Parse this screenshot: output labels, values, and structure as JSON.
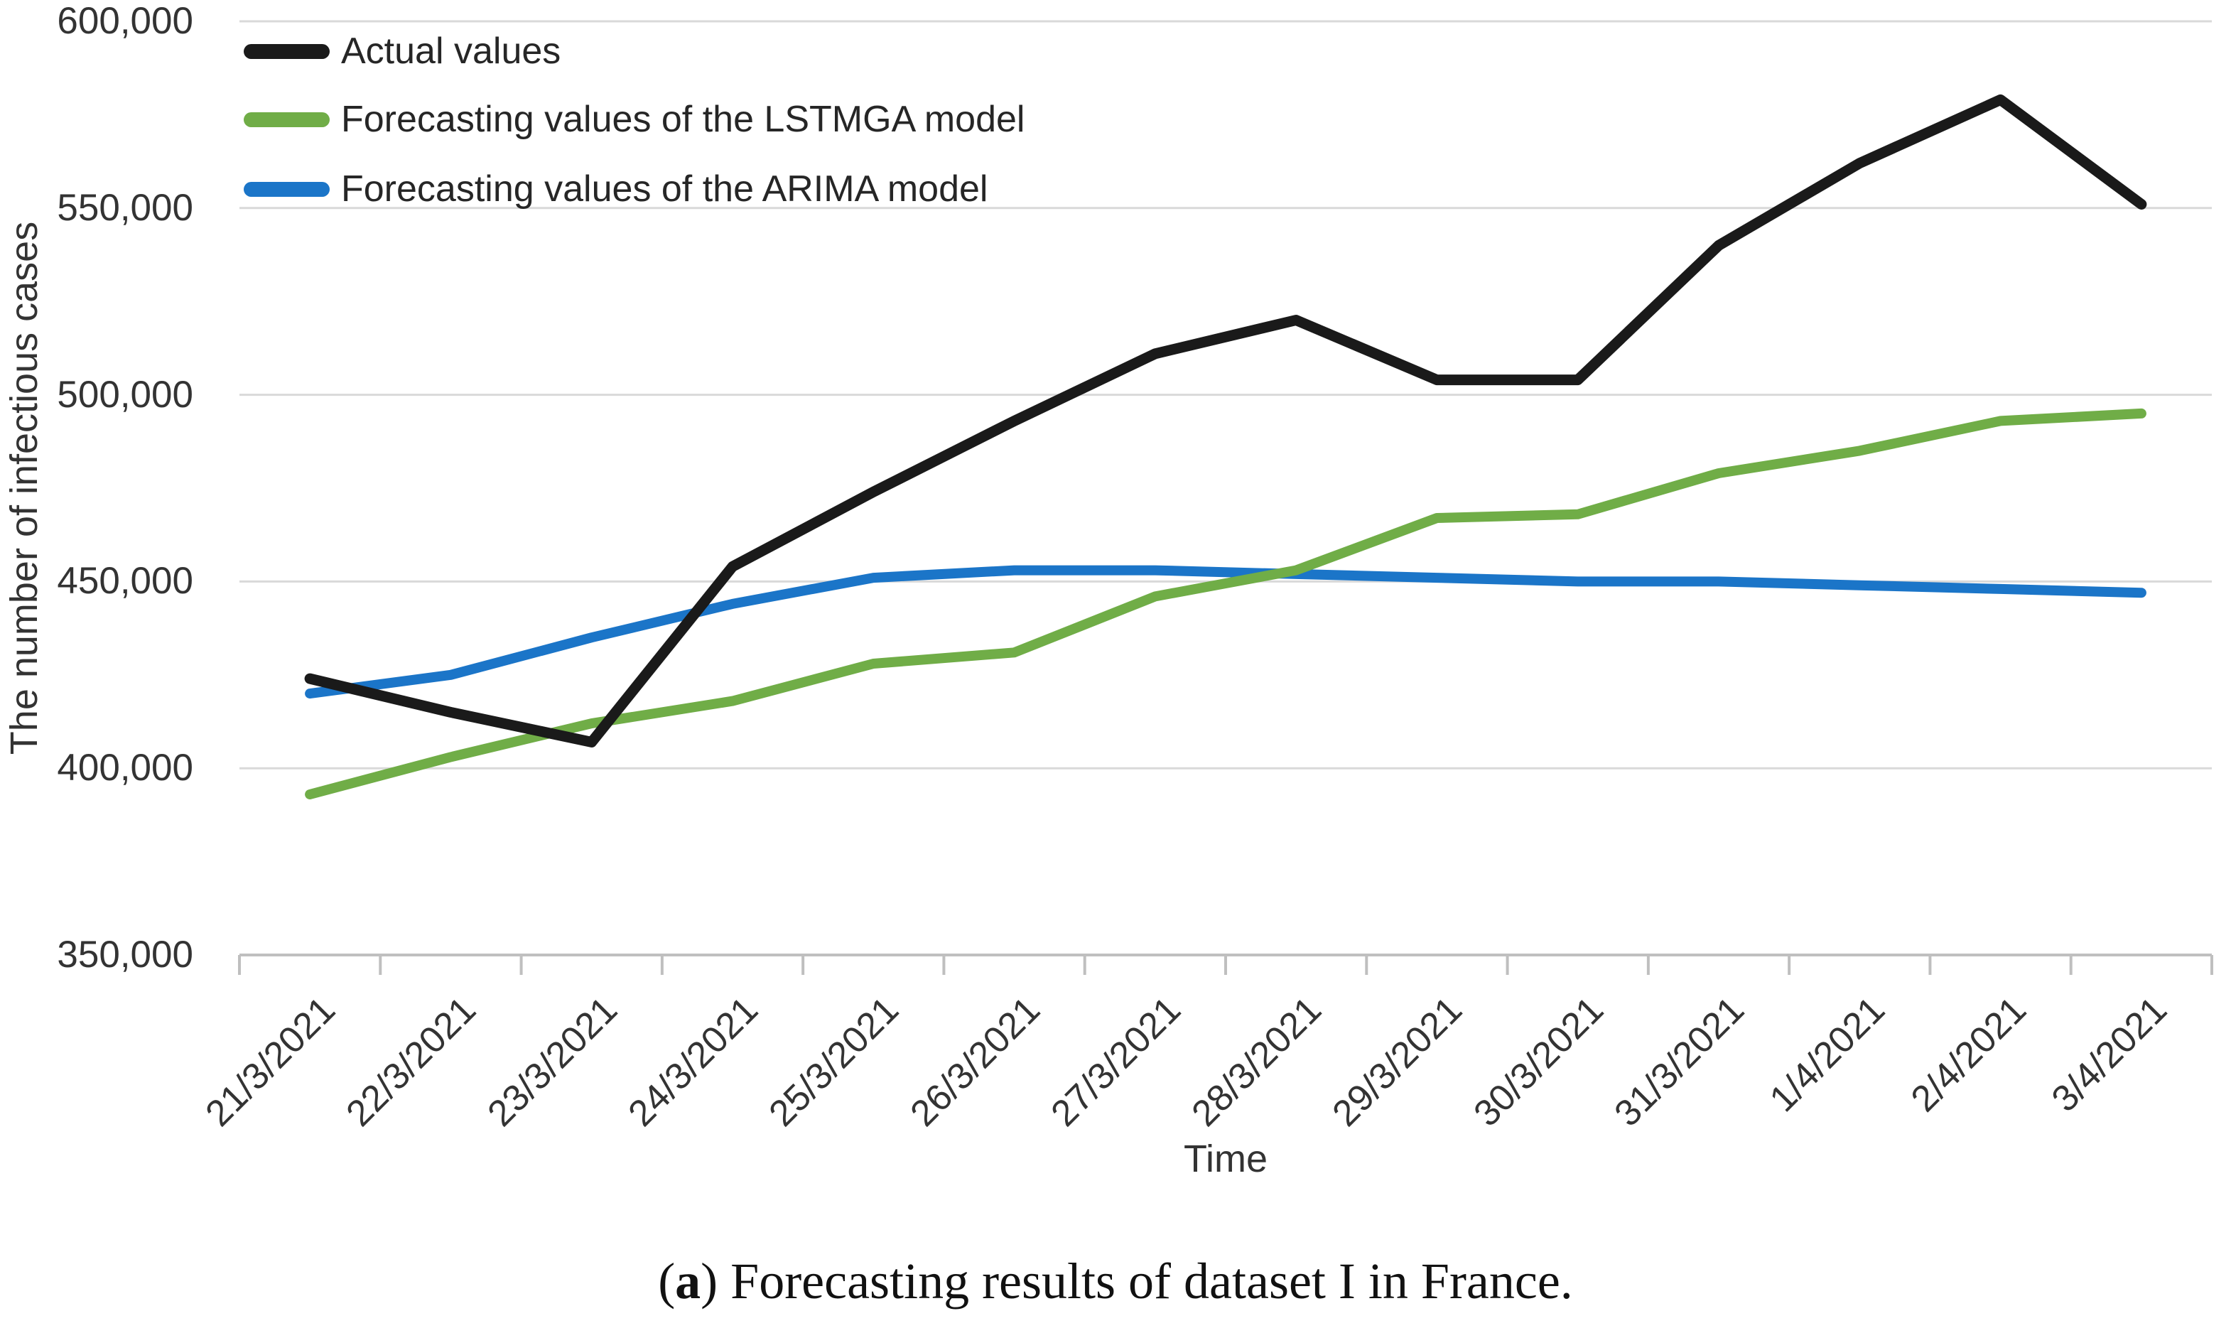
{
  "figure": {
    "caption": {
      "open": "(",
      "letter": "a",
      "rest": ") Forecasting results of dataset I in France."
    }
  },
  "chart_data": {
    "type": "line",
    "title": "",
    "xlabel": "Time",
    "ylabel": "The number of infectious cases",
    "ylim": [
      350000,
      600000
    ],
    "y_tick_step": 50000,
    "y_tick_labels": [
      "350,000",
      "400,000",
      "450,000",
      "500,000",
      "550,000",
      "600,000"
    ],
    "grid": "horizontal",
    "legend_position": "top-left",
    "colors": {
      "actual": "#1a1a1a",
      "lstmga": "#70AD47",
      "arima": "#1B75C8",
      "gridline": "#D9D9D9",
      "axis": "#BFBFBF",
      "text": "#333333"
    },
    "categories": [
      "21/3/2021",
      "22/3/2021",
      "23/3/2021",
      "24/3/2021",
      "25/3/2021",
      "26/3/2021",
      "27/3/2021",
      "28/3/2021",
      "29/3/2021",
      "30/3/2021",
      "31/3/2021",
      "1/4/2021",
      "2/4/2021",
      "3/4/2021"
    ],
    "series": [
      {
        "name": "Actual values",
        "color": "#1a1a1a",
        "values": [
          424000,
          415000,
          407000,
          454000,
          474000,
          493000,
          511000,
          520000,
          504000,
          504000,
          540000,
          562000,
          579000,
          551000
        ]
      },
      {
        "name": "Forecasting values of the LSTMGA model",
        "color": "#70AD47",
        "values": [
          393000,
          403000,
          412000,
          418000,
          428000,
          431000,
          446000,
          453000,
          467000,
          468000,
          479000,
          485000,
          493000,
          495000
        ]
      },
      {
        "name": "Forecasting values of the ARIMA model",
        "color": "#1B75C8",
        "values": [
          420000,
          425000,
          435000,
          444000,
          451000,
          453000,
          453000,
          452000,
          451000,
          450000,
          450000,
          449000,
          448000,
          447000
        ]
      }
    ]
  }
}
